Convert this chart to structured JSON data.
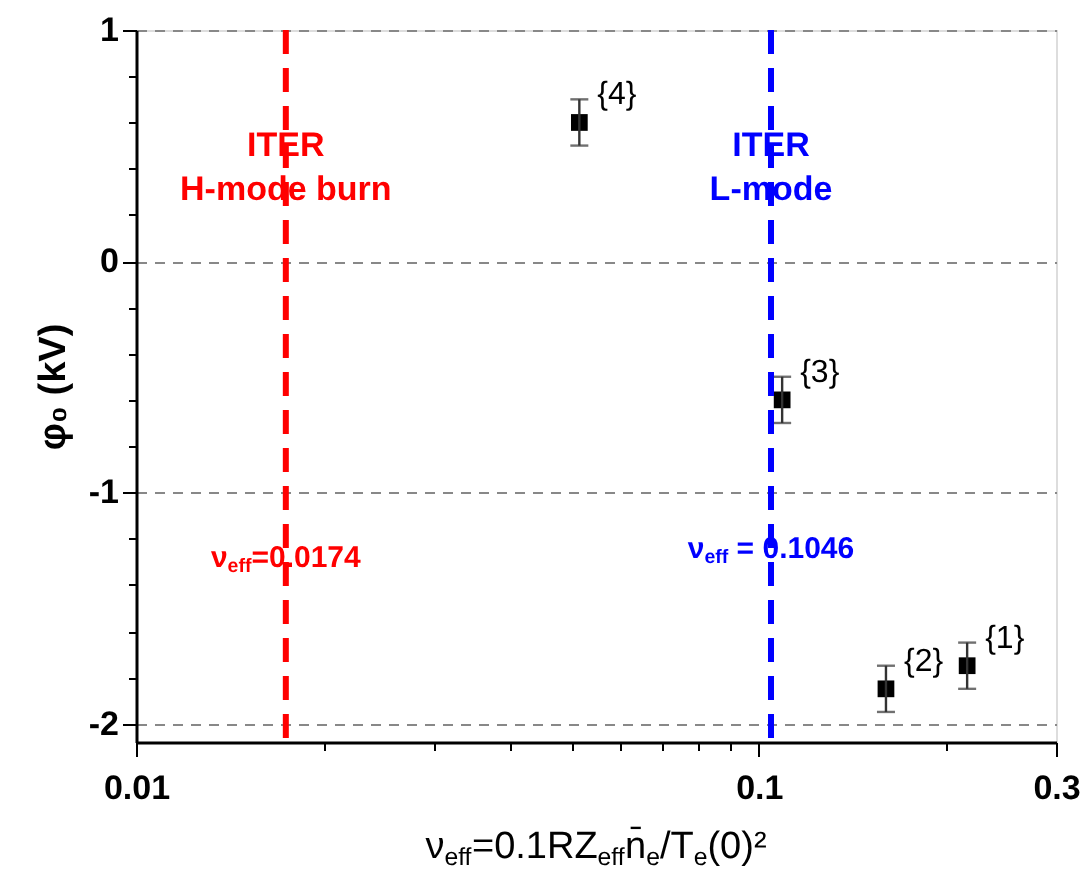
{
  "chart_data": {
    "type": "scatter",
    "xlabel": "ν$_{eff}$=0.1RZ$_{eff}$n̄$_{e}$/T$_{e}$(0)²",
    "ylabel": "φ₀ (kV)",
    "series": [
      {
        "color": "#000000",
        "x": [
          0.216,
          0.16,
          0.109,
          0.0515
        ],
        "values": [
          -1.75,
          -1.85,
          -0.6,
          0.6
        ],
        "errors": [
          0.1,
          0.1,
          0.1,
          0.1
        ]
      }
    ],
    "xlim": [
      0.01,
      0.3
    ],
    "xticks": [
      0.01,
      {
        "value": 0.02,
        "label": null
      },
      {
        "value": 0.03,
        "label": null
      },
      {
        "value": 0.04,
        "label": null
      },
      {
        "value": 0.05,
        "label": null
      },
      {
        "value": 0.06,
        "label": null
      },
      {
        "value": 0.07,
        "label": null
      },
      {
        "value": 0.08,
        "label": null
      },
      {
        "value": 0.09,
        "label": null
      },
      0.1,
      {
        "value": 0.2,
        "label": null
      },
      0.3
    ],
    "ylim": [
      -2.08,
      1
    ],
    "yticks": [
      -2,
      {
        "value": -1.8,
        "label": null
      },
      {
        "value": -1.6,
        "label": null
      },
      {
        "value": -1.4,
        "label": null
      },
      {
        "value": -1.2,
        "label": null
      },
      -1,
      {
        "value": -0.8,
        "label": null
      },
      {
        "value": -0.6,
        "label": null
      },
      {
        "value": -0.4,
        "label": null
      },
      {
        "value": -0.2,
        "label": null
      },
      0,
      {
        "value": 0.2,
        "label": null
      },
      {
        "value": 0.4,
        "label": null
      },
      {
        "value": 0.6,
        "label": null
      },
      {
        "value": 0.8,
        "label": null
      },
      1
    ],
    "log": "x",
    "grid": "y",
    "marker": "square",
    "ref_lines": [
      {
        "axis": "x",
        "value": 0.0174,
        "label": "ITER\nH-mode burn",
        "color": "#ff0000",
        "line_style": "dashed"
      },
      {
        "axis": "x",
        "value": 0.1046,
        "label": "ITER\nL-mode",
        "color": "#0000ff",
        "line_style": "dashed"
      }
    ],
    "annotations": [
      {
        "text": "{1}",
        "x": 0.216,
        "y": -1.75
      },
      {
        "text": "{2}",
        "x": 0.16,
        "y": -1.85
      },
      {
        "text": "{3}",
        "x": 0.109,
        "y": -0.6
      },
      {
        "text": "{4}",
        "x": 0.0515,
        "y": 0.6
      },
      {
        "text": "ν$_{eff}$=0.0174",
        "x": 0.0174,
        "y": -1.28
      },
      {
        "text": "ν$_{eff}$ = 0.1046",
        "x": 0.1046,
        "y": -1.24
      }
    ]
  }
}
